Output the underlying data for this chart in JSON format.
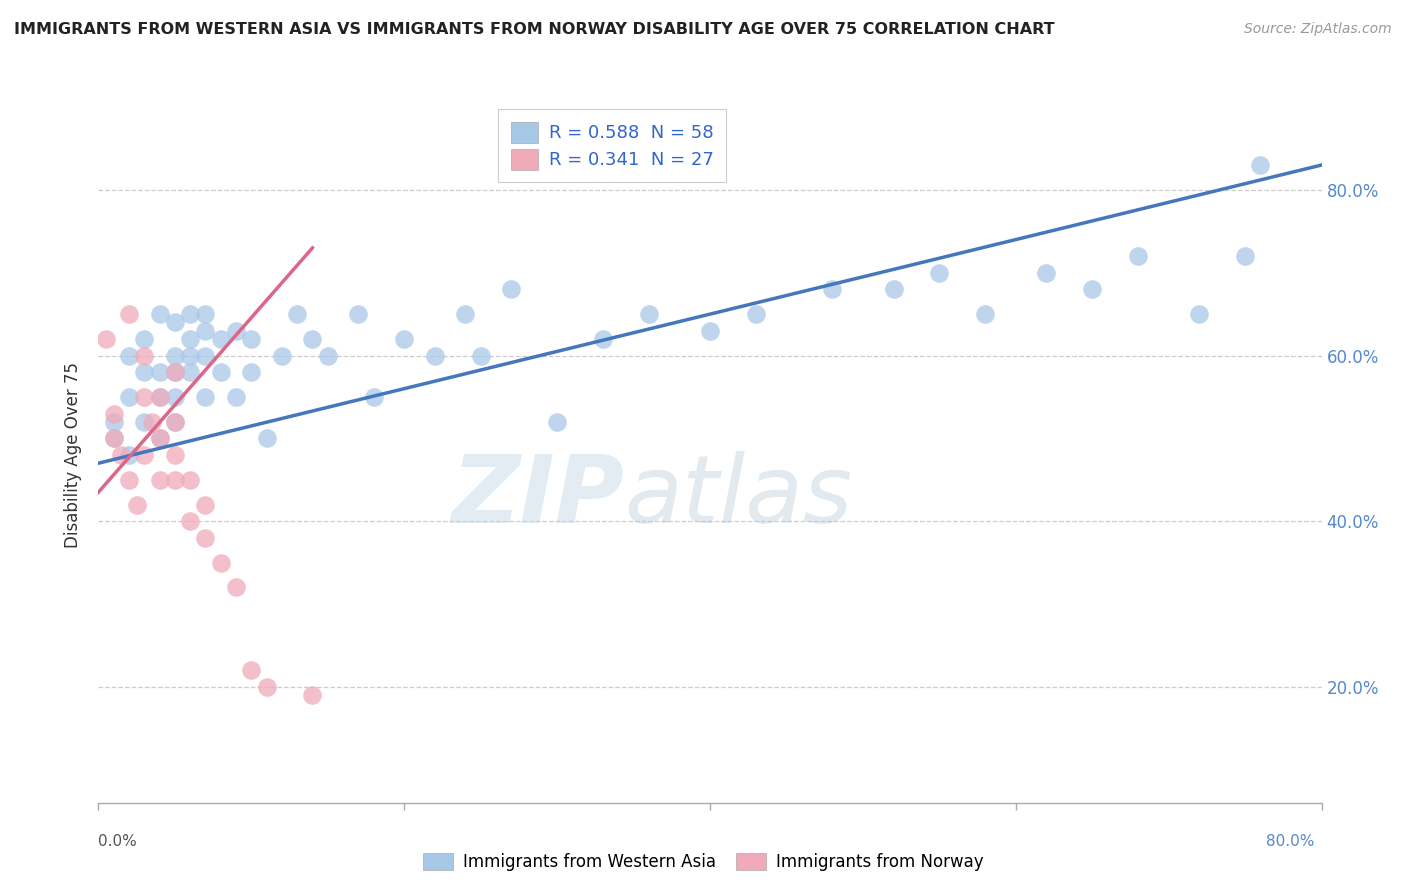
{
  "title": "IMMIGRANTS FROM WESTERN ASIA VS IMMIGRANTS FROM NORWAY DISABILITY AGE OVER 75 CORRELATION CHART",
  "source": "Source: ZipAtlas.com",
  "ylabel": "Disability Age Over 75",
  "legend1_label": "R = 0.588  N = 58",
  "legend2_label": "R = 0.341  N = 27",
  "legend_bottom1": "Immigrants from Western Asia",
  "legend_bottom2": "Immigrants from Norway",
  "blue_color": "#A8C8E8",
  "pink_color": "#F0AABA",
  "blue_line_color": "#4477BB",
  "pink_line_color": "#DD6688",
  "watermark_zip": "ZIP",
  "watermark_atlas": "atlas",
  "xlim": [
    0.0,
    0.8
  ],
  "ylim": [
    0.06,
    0.9
  ],
  "xtick_positions": [
    0.0,
    0.2,
    0.4,
    0.6,
    0.8
  ],
  "xtick_labels": [
    "0.0%",
    "20.0%",
    "40.0%",
    "60.0%",
    "80.0%"
  ],
  "ytick_positions": [
    0.2,
    0.4,
    0.6,
    0.8
  ],
  "ytick_labels": [
    "20.0%",
    "40.0%",
    "60.0%",
    "80.0%"
  ],
  "blue_scatter_x": [
    0.01,
    0.01,
    0.02,
    0.02,
    0.02,
    0.03,
    0.03,
    0.03,
    0.04,
    0.04,
    0.04,
    0.04,
    0.05,
    0.05,
    0.05,
    0.05,
    0.05,
    0.06,
    0.06,
    0.06,
    0.06,
    0.07,
    0.07,
    0.07,
    0.07,
    0.08,
    0.08,
    0.09,
    0.09,
    0.1,
    0.1,
    0.11,
    0.12,
    0.13,
    0.14,
    0.15,
    0.17,
    0.18,
    0.2,
    0.22,
    0.24,
    0.25,
    0.27,
    0.3,
    0.33,
    0.36,
    0.4,
    0.43,
    0.48,
    0.52,
    0.55,
    0.58,
    0.62,
    0.65,
    0.68,
    0.72,
    0.75,
    0.76
  ],
  "blue_scatter_y": [
    0.5,
    0.52,
    0.48,
    0.55,
    0.6,
    0.52,
    0.58,
    0.62,
    0.5,
    0.55,
    0.58,
    0.65,
    0.52,
    0.55,
    0.58,
    0.6,
    0.64,
    0.58,
    0.6,
    0.62,
    0.65,
    0.55,
    0.6,
    0.63,
    0.65,
    0.58,
    0.62,
    0.55,
    0.63,
    0.58,
    0.62,
    0.5,
    0.6,
    0.65,
    0.62,
    0.6,
    0.65,
    0.55,
    0.62,
    0.6,
    0.65,
    0.6,
    0.68,
    0.52,
    0.62,
    0.65,
    0.63,
    0.65,
    0.68,
    0.68,
    0.7,
    0.65,
    0.7,
    0.68,
    0.72,
    0.65,
    0.72,
    0.83
  ],
  "pink_scatter_x": [
    0.005,
    0.01,
    0.01,
    0.015,
    0.02,
    0.02,
    0.025,
    0.03,
    0.03,
    0.03,
    0.035,
    0.04,
    0.04,
    0.04,
    0.05,
    0.05,
    0.05,
    0.05,
    0.06,
    0.06,
    0.07,
    0.07,
    0.08,
    0.09,
    0.1,
    0.11,
    0.14
  ],
  "pink_scatter_y": [
    0.62,
    0.5,
    0.53,
    0.48,
    0.45,
    0.65,
    0.42,
    0.48,
    0.55,
    0.6,
    0.52,
    0.45,
    0.5,
    0.55,
    0.45,
    0.48,
    0.52,
    0.58,
    0.4,
    0.45,
    0.38,
    0.42,
    0.35,
    0.32,
    0.22,
    0.2,
    0.19
  ],
  "blue_trend_x": [
    0.0,
    0.8
  ],
  "blue_trend_y": [
    0.47,
    0.83
  ],
  "pink_trend_x": [
    0.0,
    0.14
  ],
  "pink_trend_y": [
    0.435,
    0.73
  ]
}
